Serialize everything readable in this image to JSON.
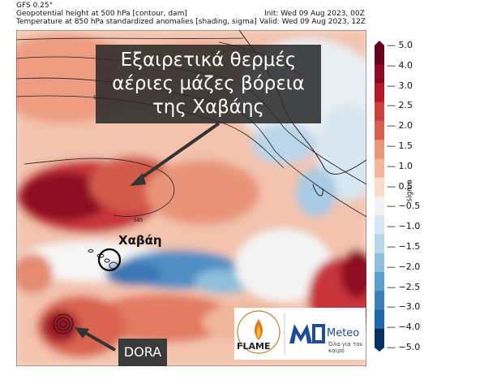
{
  "header": {
    "model": "GFS 0.25°",
    "line1_left": "Geopotential height at 500 hPa [contour, dam]",
    "line1_right": "Init: Wed 09 Aug 2023, 00Z",
    "line2_left": "Temperature at 850 hPa standardized anomalies [shading, sigma]",
    "line2_right": "Valid: Wed 09 Aug 2023, 12Z"
  },
  "callout": {
    "line1": "Εξαιρετικά θερμές",
    "line2": "αέριες μάζες βόρεια",
    "line3": "της Χαβάης"
  },
  "labels": {
    "havana": "Χαβάη",
    "dora": "DORA"
  },
  "contours": {
    "c590": "590",
    "c585": "585"
  },
  "colorbar": {
    "unit": "sigma",
    "ticks": [
      "5.0",
      "4.0",
      "3.0",
      "2.5",
      "2.0",
      "1.5",
      "1.0",
      "0.5",
      "−0.5",
      "−1.0",
      "−1.5",
      "−2.0",
      "−2.5",
      "−3.0",
      "−4.0",
      "−5.0"
    ],
    "colors": [
      "#67001f",
      "#8c0a1f",
      "#b2182b",
      "#c8413f",
      "#d6604d",
      "#ea9677",
      "#f4b898",
      "#fbdccb",
      "#f2f2f2",
      "#d7e6f0",
      "#b9d5e8",
      "#8ebfdc",
      "#5aa1ce",
      "#3a7fb8",
      "#2166ac",
      "#053061"
    ]
  },
  "logos": {
    "flame": "FLAME",
    "meteo": "Meteo",
    "meteo_sub": "Όλα για τον καιρό"
  }
}
